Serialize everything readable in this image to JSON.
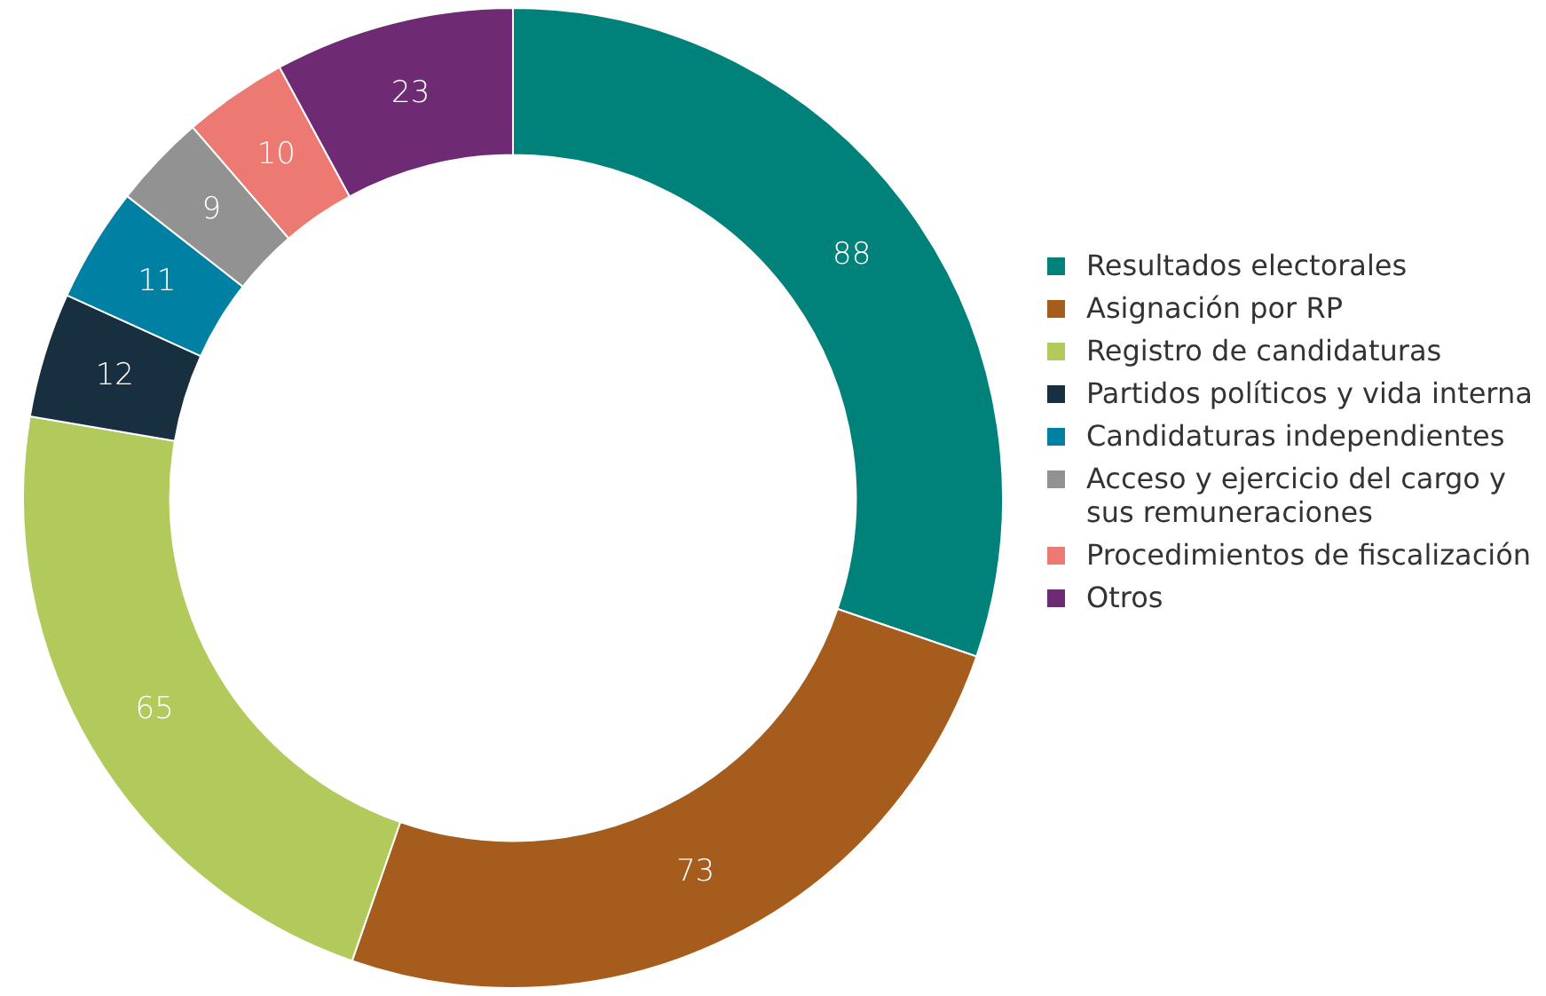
{
  "chart_data": {
    "type": "donut",
    "categories": [
      "Resultados electorales",
      "Asignación por RP",
      "Registro de candidaturas",
      "Partidos políticos y vida interna",
      "Candidaturas independientes",
      "Acceso y ejercicio del cargo y sus remuneraciones",
      "Procedimientos de fiscalización",
      "Otros"
    ],
    "values": [
      88,
      73,
      65,
      12,
      11,
      9,
      10,
      23
    ],
    "colors": [
      "#00827a",
      "#a65c1c",
      "#b2c95b",
      "#172f3e",
      "#0081a4",
      "#929292",
      "#ec7a72",
      "#6e2a73"
    ],
    "data_labels": true,
    "legend": "right"
  }
}
